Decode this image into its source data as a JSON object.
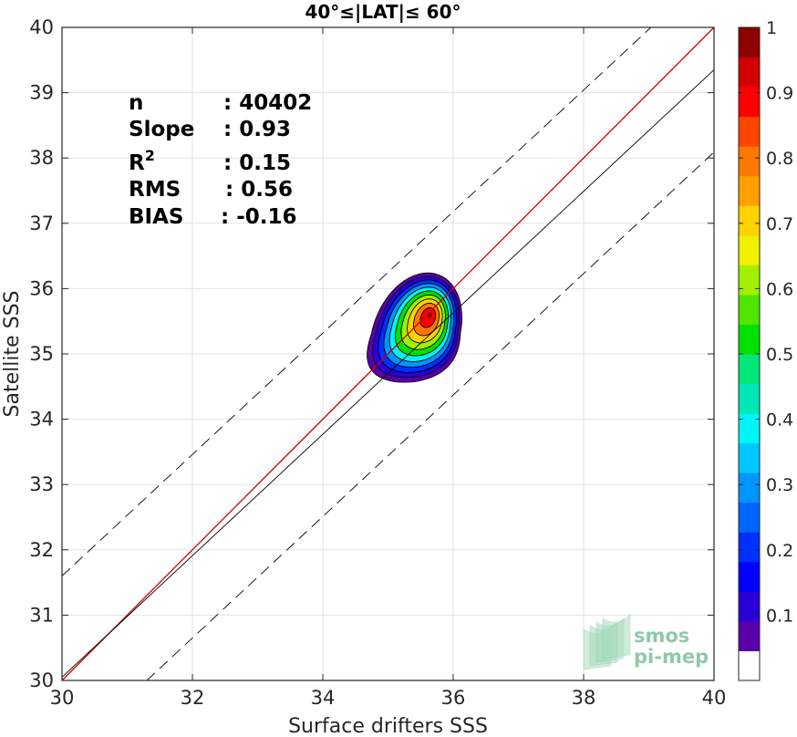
{
  "chart_data": {
    "type": "contour-density",
    "title": "40°≤|LAT|≤ 60°",
    "xlabel": "Surface drifters SSS",
    "ylabel": "Satellite SSS",
    "xlim": [
      30,
      40
    ],
    "ylim": [
      30,
      40
    ],
    "x_ticks": [
      "30",
      "32",
      "34",
      "36",
      "38",
      "40"
    ],
    "y_ticks": [
      "30",
      "31",
      "32",
      "33",
      "34",
      "35",
      "36",
      "37",
      "38",
      "39",
      "40"
    ],
    "grid": true,
    "stats": [
      {
        "label": "n",
        "value": ": 40402"
      },
      {
        "label": "Slope",
        "value": ": 0.93"
      },
      {
        "label": "R",
        "sup": "2",
        "value": ": 0.15"
      },
      {
        "label": "RMS",
        "value": ": 0.56"
      },
      {
        "label": "BIAS",
        "value": ": -0.16"
      }
    ],
    "lines": {
      "identity": {
        "slope": 1,
        "intercept": 0,
        "color": "#cc0000"
      },
      "regression": {
        "slope": 0.93,
        "intercept": 2.15,
        "color": "#000000",
        "style": "solid"
      },
      "upper_bound": {
        "slope": 0.93,
        "intercept": 3.7,
        "color": "#000000",
        "style": "dashed"
      },
      "lower_bound": {
        "slope": 0.93,
        "intercept": 0.89,
        "color": "#000000",
        "style": "dashed"
      }
    },
    "density_peak": {
      "x": 35.65,
      "y": 35.6
    },
    "contour_levels": [
      0.05,
      0.1,
      0.2,
      0.3,
      0.4,
      0.5,
      0.6,
      0.7,
      0.8,
      0.9,
      0.95
    ],
    "colorbar": {
      "ticks": [
        "0.1",
        "0.2",
        "0.3",
        "0.4",
        "0.5",
        "0.6",
        "0.7",
        "0.8",
        "0.9",
        "1"
      ],
      "tick_values": [
        0.1,
        0.2,
        0.3,
        0.4,
        0.5,
        0.6,
        0.7,
        0.8,
        0.9,
        1.0
      ],
      "range": [
        0,
        1
      ],
      "colors": [
        "#ffffff",
        "#5a00a8",
        "#2800d8",
        "#0000ff",
        "#0030ff",
        "#0066ff",
        "#0096ff",
        "#00c8ff",
        "#00f5f5",
        "#00e6b4",
        "#00e678",
        "#00e100",
        "#50e600",
        "#a0f000",
        "#f0f000",
        "#ffd200",
        "#ffa000",
        "#ff7800",
        "#ff4600",
        "#ff0000",
        "#d20000",
        "#8c0000"
      ]
    }
  },
  "logo": {
    "line1": "smos",
    "line2": "pi-mep"
  }
}
